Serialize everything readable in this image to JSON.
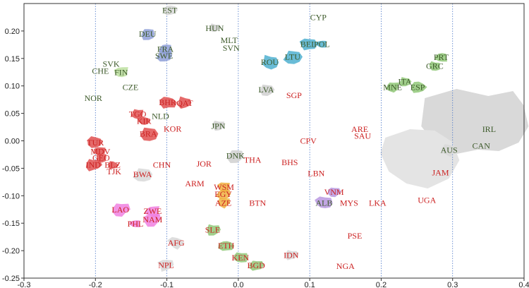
{
  "chart_data": {
    "type": "scatter",
    "title": "",
    "xlabel": "",
    "ylabel": "",
    "xlim": [
      -0.3,
      0.4
    ],
    "ylim": [
      -0.25,
      0.25
    ],
    "x_ticks": [
      -0.3,
      -0.2,
      -0.1,
      0.0,
      0.1,
      0.2,
      0.3,
      0.4
    ],
    "x_tick_labels": [
      "-0.3",
      "-0.2",
      "-0.1",
      "0.0",
      "0.1",
      "0.2",
      "0.3",
      "0.4"
    ],
    "y_ticks": [
      -0.25,
      -0.2,
      -0.15,
      -0.1,
      -0.05,
      0.0,
      0.05,
      0.1,
      0.15,
      0.2
    ],
    "y_tick_labels": [
      "-0.25",
      "-0.20",
      "-0.15",
      "-0.10",
      "-0.05",
      "0.00",
      "0.05",
      "0.10",
      "0.15",
      "0.20"
    ],
    "vertical_gridlines": [
      -0.2,
      -0.1,
      0.0,
      0.1,
      0.2,
      0.3
    ],
    "colors": {
      "green_text": "#3d5a2a",
      "red_text": "#cc2222",
      "grid": "#4a76c8",
      "axis": "#333333"
    },
    "points": [
      {
        "label": "EST",
        "x": -0.096,
        "y": 0.238,
        "group": "green",
        "shape": "#d8d8d8"
      },
      {
        "label": "CYP",
        "x": 0.112,
        "y": 0.225,
        "group": "green",
        "shape": ""
      },
      {
        "label": "HUN",
        "x": -0.033,
        "y": 0.205,
        "group": "green",
        "shape": "#cfcfcf"
      },
      {
        "label": "DEU",
        "x": -0.127,
        "y": 0.195,
        "group": "green",
        "shape": "#8fa0d8"
      },
      {
        "label": "MLT",
        "x": -0.013,
        "y": 0.183,
        "group": "green",
        "shape": ""
      },
      {
        "label": "BEL",
        "x": 0.098,
        "y": 0.176,
        "group": "green",
        "shape": "#4fb0d0"
      },
      {
        "label": "POL",
        "x": 0.117,
        "y": 0.176,
        "group": "green",
        "shape": "#4fb0d0"
      },
      {
        "label": "FRA",
        "x": -0.102,
        "y": 0.167,
        "group": "green",
        "shape": "#8fa0d8"
      },
      {
        "label": "SVN",
        "x": -0.01,
        "y": 0.169,
        "group": "green",
        "shape": ""
      },
      {
        "label": "SWE",
        "x": -0.104,
        "y": 0.155,
        "group": "green",
        "shape": "#8fa0d8"
      },
      {
        "label": "LTU",
        "x": 0.076,
        "y": 0.153,
        "group": "green",
        "shape": "#4fb0d0"
      },
      {
        "label": "ROU",
        "x": 0.044,
        "y": 0.143,
        "group": "green",
        "shape": "#4fb0d0"
      },
      {
        "label": "PRT",
        "x": 0.284,
        "y": 0.152,
        "group": "green",
        "shape": "#90c878"
      },
      {
        "label": "SVK",
        "x": -0.178,
        "y": 0.14,
        "group": "green",
        "shape": ""
      },
      {
        "label": "GRC",
        "x": 0.275,
        "y": 0.136,
        "group": "green",
        "shape": "#90c878"
      },
      {
        "label": "CHE",
        "x": -0.193,
        "y": 0.127,
        "group": "green",
        "shape": ""
      },
      {
        "label": "FIN",
        "x": -0.164,
        "y": 0.125,
        "group": "green",
        "shape": "#bde0a0"
      },
      {
        "label": "ITA",
        "x": 0.233,
        "y": 0.108,
        "group": "green",
        "shape": "#90c878"
      },
      {
        "label": "MNE",
        "x": 0.216,
        "y": 0.098,
        "group": "green",
        "shape": "#90c878"
      },
      {
        "label": "ESP",
        "x": 0.251,
        "y": 0.098,
        "group": "green",
        "shape": "#90c878"
      },
      {
        "label": "CZE",
        "x": -0.151,
        "y": 0.098,
        "group": "green",
        "shape": ""
      },
      {
        "label": "LVA",
        "x": 0.039,
        "y": 0.093,
        "group": "green",
        "shape": "#d0d0d0"
      },
      {
        "label": "NOR",
        "x": -0.203,
        "y": 0.078,
        "group": "green",
        "shape": ""
      },
      {
        "label": "SGP",
        "x": 0.078,
        "y": 0.083,
        "group": "red",
        "shape": ""
      },
      {
        "label": "BHR",
        "x": -0.099,
        "y": 0.07,
        "group": "red",
        "shape": "#e05050"
      },
      {
        "label": "QAT",
        "x": -0.075,
        "y": 0.069,
        "group": "red",
        "shape": "#e05050"
      },
      {
        "label": "TGO",
        "x": -0.141,
        "y": 0.049,
        "group": "red",
        "shape": "#e05050"
      },
      {
        "label": "NLD",
        "x": -0.109,
        "y": 0.045,
        "group": "green",
        "shape": ""
      },
      {
        "label": "KIR",
        "x": -0.132,
        "y": 0.036,
        "group": "red",
        "shape": "#e05050"
      },
      {
        "label": "JPN",
        "x": -0.028,
        "y": 0.027,
        "group": "green",
        "shape": "#d0d0d0"
      },
      {
        "label": "KOR",
        "x": -0.092,
        "y": 0.022,
        "group": "red",
        "shape": ""
      },
      {
        "label": "BRA",
        "x": -0.126,
        "y": 0.013,
        "group": "red",
        "shape": "#e05050"
      },
      {
        "label": "ARE",
        "x": 0.17,
        "y": 0.021,
        "group": "red",
        "shape": ""
      },
      {
        "label": "IRL",
        "x": 0.351,
        "y": 0.021,
        "group": "green",
        "shape": ""
      },
      {
        "label": "SAU",
        "x": 0.174,
        "y": 0.009,
        "group": "red",
        "shape": ""
      },
      {
        "label": "CPV",
        "x": 0.098,
        "y": 0.0,
        "group": "red",
        "shape": ""
      },
      {
        "label": "TUR",
        "x": -0.2,
        "y": -0.003,
        "group": "red",
        "shape": "#e05050"
      },
      {
        "label": "AUS",
        "x": 0.295,
        "y": -0.017,
        "group": "green",
        "shape": "#d8d8d8"
      },
      {
        "label": "CAN",
        "x": 0.34,
        "y": -0.009,
        "group": "green",
        "shape": "#d8d8d8"
      },
      {
        "label": "MDV",
        "x": -0.193,
        "y": -0.019,
        "group": "red",
        "shape": "#e05050"
      },
      {
        "label": "DNK",
        "x": -0.004,
        "y": -0.027,
        "group": "green",
        "shape": "#d0d0d0"
      },
      {
        "label": "THA",
        "x": 0.02,
        "y": -0.035,
        "group": "red",
        "shape": ""
      },
      {
        "label": "GEO",
        "x": -0.192,
        "y": -0.031,
        "group": "red",
        "shape": "#e05050"
      },
      {
        "label": "JOR",
        "x": -0.048,
        "y": -0.042,
        "group": "red",
        "shape": ""
      },
      {
        "label": "BHS",
        "x": 0.072,
        "y": -0.039,
        "group": "red",
        "shape": ""
      },
      {
        "label": "IND",
        "x": -0.203,
        "y": -0.044,
        "group": "red",
        "shape": "#e05050"
      },
      {
        "label": "BLZ",
        "x": -0.176,
        "y": -0.044,
        "group": "red",
        "shape": "#e05050"
      },
      {
        "label": "CHN",
        "x": -0.107,
        "y": -0.044,
        "group": "red",
        "shape": ""
      },
      {
        "label": "TJK",
        "x": -0.174,
        "y": -0.056,
        "group": "red",
        "shape": ""
      },
      {
        "label": "BWA",
        "x": -0.134,
        "y": -0.061,
        "group": "red",
        "shape": "#d8d8d8"
      },
      {
        "label": "JAM",
        "x": 0.283,
        "y": -0.058,
        "group": "red",
        "shape": ""
      },
      {
        "label": "LBN",
        "x": 0.109,
        "y": -0.059,
        "group": "red",
        "shape": ""
      },
      {
        "label": "ARM",
        "x": -0.061,
        "y": -0.078,
        "group": "red",
        "shape": ""
      },
      {
        "label": "WSM",
        "x": -0.02,
        "y": -0.084,
        "group": "red",
        "shape": "#f0b040"
      },
      {
        "label": "VNM",
        "x": 0.134,
        "y": -0.093,
        "group": "red",
        "shape": "#b898e0"
      },
      {
        "label": "EGY",
        "x": -0.021,
        "y": -0.097,
        "group": "red",
        "shape": "#f0b040"
      },
      {
        "label": "UGA",
        "x": 0.264,
        "y": -0.108,
        "group": "red",
        "shape": ""
      },
      {
        "label": "ALB",
        "x": 0.12,
        "y": -0.113,
        "group": "green",
        "shape": "#b898e0"
      },
      {
        "label": "MYS",
        "x": 0.155,
        "y": -0.113,
        "group": "red",
        "shape": ""
      },
      {
        "label": "LKA",
        "x": 0.195,
        "y": -0.113,
        "group": "red",
        "shape": ""
      },
      {
        "label": "BTN",
        "x": 0.027,
        "y": -0.113,
        "group": "red",
        "shape": ""
      },
      {
        "label": "AZE",
        "x": -0.021,
        "y": -0.113,
        "group": "red",
        "shape": "#f0b040"
      },
      {
        "label": "LAO",
        "x": -0.165,
        "y": -0.125,
        "group": "red",
        "shape": "#f080e0"
      },
      {
        "label": "ZWE",
        "x": -0.12,
        "y": -0.128,
        "group": "red",
        "shape": "#f080e0"
      },
      {
        "label": "NAM",
        "x": -0.12,
        "y": -0.143,
        "group": "red",
        "shape": "#f080e0"
      },
      {
        "label": "PHL",
        "x": -0.144,
        "y": -0.151,
        "group": "red",
        "shape": "#f080e0"
      },
      {
        "label": "SLE",
        "x": -0.036,
        "y": -0.162,
        "group": "red",
        "shape": "#90c878"
      },
      {
        "label": "PSE",
        "x": 0.163,
        "y": -0.173,
        "group": "red",
        "shape": ""
      },
      {
        "label": "AFG",
        "x": -0.087,
        "y": -0.186,
        "group": "red",
        "shape": "#d8d8d8"
      },
      {
        "label": "ETH",
        "x": -0.017,
        "y": -0.191,
        "group": "red",
        "shape": "#90c878"
      },
      {
        "label": "IDN",
        "x": 0.074,
        "y": -0.208,
        "group": "red",
        "shape": "#d8d8d8"
      },
      {
        "label": "KEN",
        "x": 0.003,
        "y": -0.213,
        "group": "red",
        "shape": "#90c878"
      },
      {
        "label": "NPL",
        "x": -0.101,
        "y": -0.226,
        "group": "red",
        "shape": "#d8d8d8"
      },
      {
        "label": "BGD",
        "x": 0.025,
        "y": -0.227,
        "group": "red",
        "shape": "#90c878"
      },
      {
        "label": "NGA",
        "x": 0.15,
        "y": -0.228,
        "group": "red",
        "shape": ""
      }
    ],
    "background_shapes": [
      {
        "name": "canada-shape",
        "color": "#d9d9d9",
        "x": 0.345,
        "y": 0.02
      },
      {
        "name": "australia-shape",
        "color": "#e4e4e4",
        "x": 0.27,
        "y": -0.02
      }
    ]
  }
}
